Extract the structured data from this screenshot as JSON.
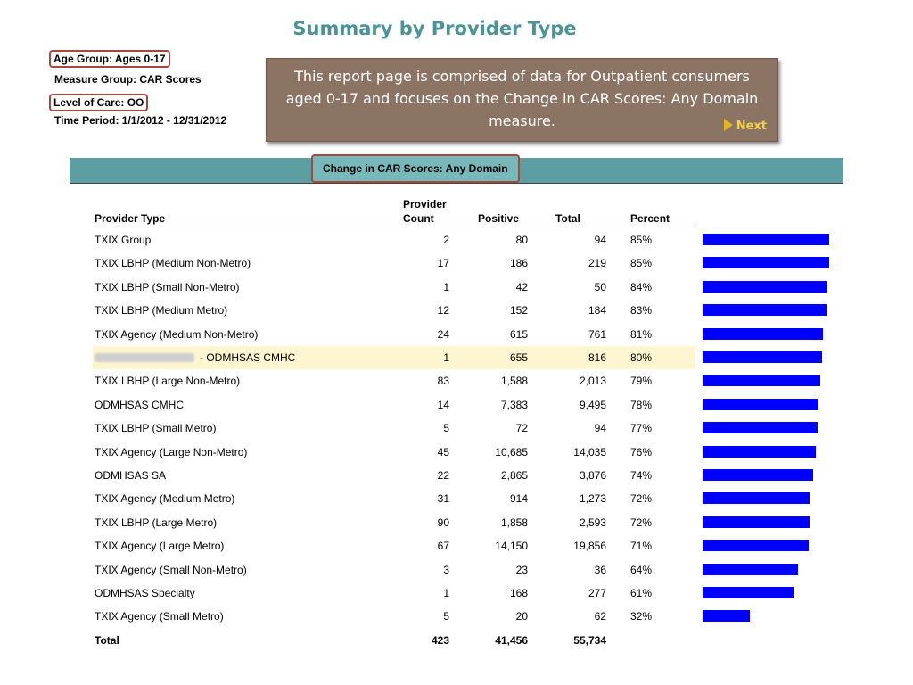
{
  "title": "Summary by Provider Type",
  "filters": [
    {
      "text": "Age Group: Ages 0-17",
      "boxed": true
    },
    {
      "text": "Measure Group: CAR Scores",
      "boxed": false
    },
    {
      "text": "Level of Care: OO",
      "boxed": true
    },
    {
      "text": "Time Period: 1/1/2012 - 12/31/2012",
      "boxed": false
    }
  ],
  "note": {
    "text": "This report page is comprised of data for Outpatient consumers aged 0-17 and focuses on the Change in CAR Scores: Any Domain measure.",
    "next_label": "Next"
  },
  "band_label": "Change in CAR Scores: Any Domain",
  "columns": {
    "provider_type": "Provider Type",
    "provider_count_line1": "Provider",
    "provider_count_line2": "Count",
    "positive": "Positive",
    "total": "Total",
    "percent": "Percent"
  },
  "rows": [
    {
      "provider": "TXIX Group",
      "count": "2",
      "positive": "80",
      "total": "94",
      "percent": "85%",
      "pct": 85
    },
    {
      "provider": "TXIX LBHP (Medium Non-Metro)",
      "count": "17",
      "positive": "186",
      "total": "219",
      "percent": "85%",
      "pct": 85
    },
    {
      "provider": "TXIX LBHP (Small Non-Metro)",
      "count": "1",
      "positive": "42",
      "total": "50",
      "percent": "84%",
      "pct": 84
    },
    {
      "provider": "TXIX LBHP (Medium Metro)",
      "count": "12",
      "positive": "152",
      "total": "184",
      "percent": "83%",
      "pct": 83
    },
    {
      "provider": "TXIX Agency (Medium Non-Metro)",
      "count": "24",
      "positive": "615",
      "total": "761",
      "percent": "81%",
      "pct": 81
    },
    {
      "provider": "- ODMHSAS CMHC",
      "count": "1",
      "positive": "655",
      "total": "816",
      "percent": "80%",
      "pct": 80,
      "highlight": true,
      "redacted_prefix": true
    },
    {
      "provider": "TXIX LBHP (Large Non-Metro)",
      "count": "83",
      "positive": "1,588",
      "total": "2,013",
      "percent": "79%",
      "pct": 79
    },
    {
      "provider": "ODMHSAS CMHC",
      "count": "14",
      "positive": "7,383",
      "total": "9,495",
      "percent": "78%",
      "pct": 78
    },
    {
      "provider": "TXIX LBHP (Small Metro)",
      "count": "5",
      "positive": "72",
      "total": "94",
      "percent": "77%",
      "pct": 77
    },
    {
      "provider": "TXIX Agency (Large Non-Metro)",
      "count": "45",
      "positive": "10,685",
      "total": "14,035",
      "percent": "76%",
      "pct": 76
    },
    {
      "provider": "ODMHSAS SA",
      "count": "22",
      "positive": "2,865",
      "total": "3,876",
      "percent": "74%",
      "pct": 74
    },
    {
      "provider": "TXIX Agency (Medium Metro)",
      "count": "31",
      "positive": "914",
      "total": "1,273",
      "percent": "72%",
      "pct": 72
    },
    {
      "provider": "TXIX LBHP (Large Metro)",
      "count": "90",
      "positive": "1,858",
      "total": "2,593",
      "percent": "72%",
      "pct": 72
    },
    {
      "provider": "TXIX Agency (Large Metro)",
      "count": "67",
      "positive": "14,150",
      "total": "19,856",
      "percent": "71%",
      "pct": 71
    },
    {
      "provider": "TXIX Agency (Small Non-Metro)",
      "count": "3",
      "positive": "23",
      "total": "36",
      "percent": "64%",
      "pct": 64
    },
    {
      "provider": "ODMHSAS Specialty",
      "count": "1",
      "positive": "168",
      "total": "277",
      "percent": "61%",
      "pct": 61
    },
    {
      "provider": "TXIX Agency (Small Metro)",
      "count": "5",
      "positive": "20",
      "total": "62",
      "percent": "32%",
      "pct": 32
    }
  ],
  "total_row": {
    "label": "Total",
    "count": "423",
    "positive": "41,456",
    "total": "55,734"
  },
  "colors": {
    "bar": "#0000ff",
    "accent": "#4a9497",
    "highlight_border": "#a9473a"
  }
}
